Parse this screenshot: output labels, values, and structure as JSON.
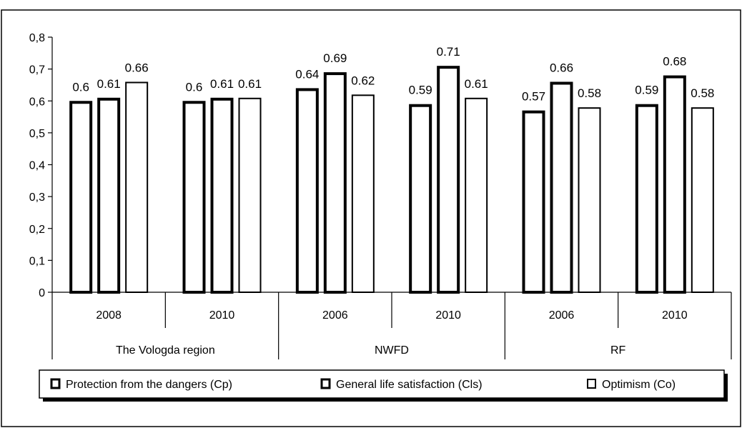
{
  "chart_data": {
    "type": "bar",
    "groups": [
      {
        "name": "The Vologda region",
        "years": [
          "2008",
          "2010"
        ]
      },
      {
        "name": "NWFD",
        "years": [
          "2006",
          "2010"
        ]
      },
      {
        "name": "RF",
        "years": [
          "2006",
          "2010"
        ]
      }
    ],
    "series": [
      {
        "name": "Protection from the dangers (Cp)",
        "values": [
          0.6,
          0.6,
          0.64,
          0.59,
          0.57,
          0.59
        ],
        "labels": [
          "0.6",
          "0.6",
          "0.64",
          "0.59",
          "0.57",
          "0.59"
        ],
        "stroke_style": "heavy"
      },
      {
        "name": "General life satisfaction (Cls)",
        "values": [
          0.61,
          0.61,
          0.69,
          0.71,
          0.66,
          0.68
        ],
        "labels": [
          "0.61",
          "0.61",
          "0.69",
          "0.71",
          "0.66",
          "0.68"
        ],
        "stroke_style": "heavy"
      },
      {
        "name": "Optimism (Co)",
        "values": [
          0.66,
          0.61,
          0.62,
          0.61,
          0.58,
          0.58
        ],
        "labels": [
          "0.66",
          "0.61",
          "0.62",
          "0.61",
          "0.58",
          "0.58"
        ],
        "stroke_style": "normal"
      }
    ],
    "ylim": [
      0,
      0.8
    ],
    "yticks": [
      "0",
      "0,1",
      "0,2",
      "0,3",
      "0,4",
      "0,5",
      "0,6",
      "0,7",
      "0,8"
    ],
    "grid": false,
    "legend": "bottom",
    "colors": {
      "bar_fill": "#ffffff",
      "bar_stroke": "#000000"
    }
  }
}
